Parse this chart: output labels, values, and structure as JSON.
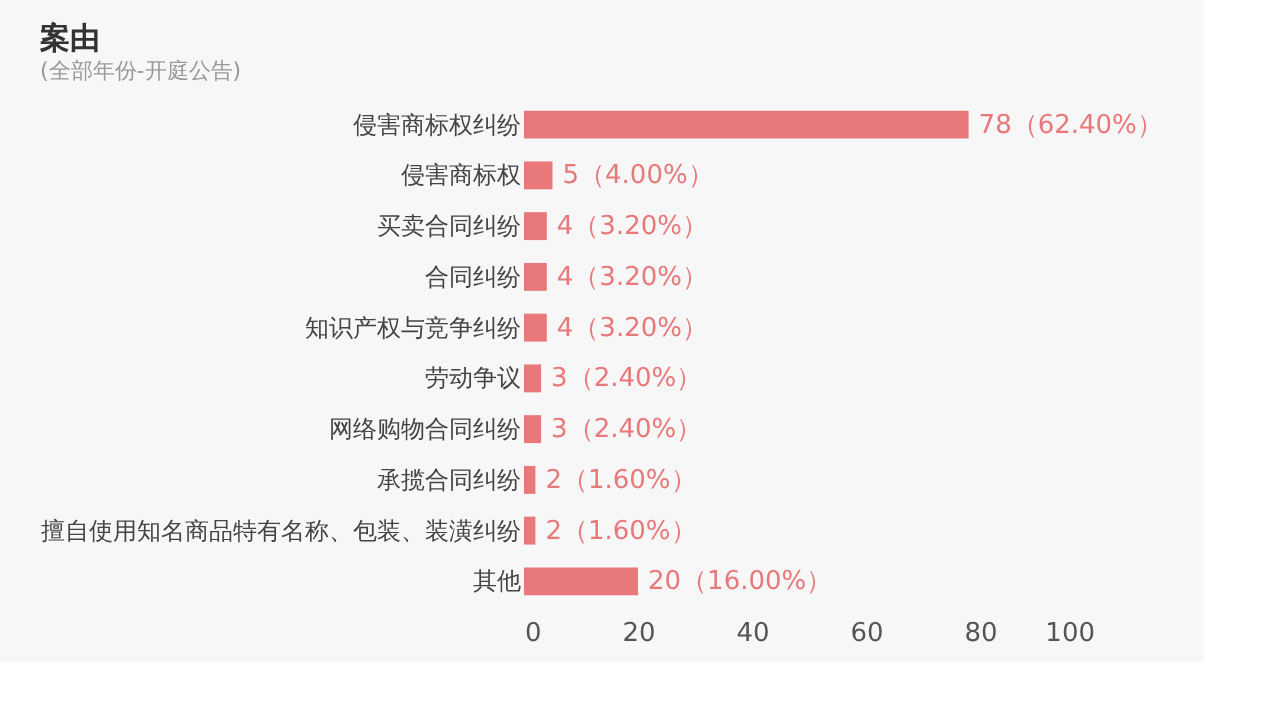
{
  "chart_data": {
    "type": "bar",
    "orientation": "horizontal",
    "title": "案由",
    "subtitle": "(全部年份-开庭公告)",
    "categories": [
      "侵害商标权纠纷",
      "侵害商标权",
      "买卖合同纠纷",
      "合同纠纷",
      "知识产权与竞争纠纷",
      "劳动争议",
      "网络购物合同纠纷",
      "承揽合同纠纷",
      "擅自使用知名商品特有名称、包装、装潢纠纷",
      "其他"
    ],
    "values": [
      78,
      5,
      4,
      4,
      4,
      3,
      3,
      2,
      2,
      20
    ],
    "value_labels": [
      "78（62.40%）",
      "5（4.00%）",
      "4（3.20%）",
      "4（3.20%）",
      "4（3.20%）",
      "3（2.40%）",
      "3（2.40%）",
      "2（1.60%）",
      "2（1.60%）",
      "20（16.00%）"
    ],
    "color": "#e8787a",
    "xlim": [
      0,
      100
    ],
    "xticks": [
      0,
      20,
      40,
      60,
      80,
      100
    ],
    "grid": false
  }
}
